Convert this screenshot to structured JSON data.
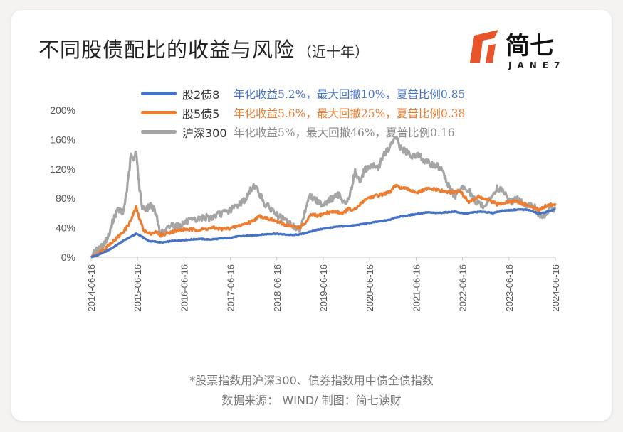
{
  "title": "不同股债配比的收益与风险",
  "subtitle": "（近十年）",
  "logo": {
    "text": "简七",
    "subtext": "JANE7"
  },
  "footnotes": [
    "*股票指数用沪深300、债券指数用中债全债指数",
    "数据来源： WIND/ 制图：简七读财"
  ],
  "legend": [
    {
      "name": "股2债8",
      "stats": "年化收益5.2%，最大回撤10%，夏普比例0.85",
      "color": "#4472c4"
    },
    {
      "name": "股5债5",
      "stats": "年化收益5.6%，最大回撤25%，夏普比例0.38",
      "color": "#ed7d31"
    },
    {
      "name": "沪深300",
      "stats": "年化收益5%，最大回撤46%，夏普比例0.16",
      "color": "#a5a5a5"
    }
  ],
  "chart_data": {
    "type": "line",
    "title": "",
    "xlabel": "",
    "ylabel": "",
    "ylim": [
      0,
      200
    ],
    "yticks": [
      "0%",
      "40%",
      "80%",
      "120%",
      "160%",
      "200%"
    ],
    "y_tick_values": [
      0,
      40,
      80,
      120,
      160,
      200
    ],
    "x_ticks": [
      "2014-06-16",
      "2015-06-16",
      "2016-06-16",
      "2017-06-16",
      "2018-06-16",
      "2019-06-16",
      "2020-06-16",
      "2021-06-16",
      "2022-06-16",
      "2023-06-16",
      "2024-06-16"
    ],
    "x_range": [
      2014.46,
      2024.46
    ],
    "grid": false,
    "legend_position": "top",
    "series": [
      {
        "name": "股2债8",
        "color": "#4472c4",
        "x": [
          2014.46,
          2014.6,
          2014.75,
          2014.9,
          2015.05,
          2015.2,
          2015.35,
          2015.43,
          2015.5,
          2015.6,
          2015.7,
          2015.85,
          2016.0,
          2016.2,
          2016.4,
          2016.6,
          2016.8,
          2017.0,
          2017.2,
          2017.4,
          2017.6,
          2017.8,
          2018.0,
          2018.2,
          2018.4,
          2018.6,
          2018.8,
          2018.95,
          2019.1,
          2019.3,
          2019.5,
          2019.7,
          2019.9,
          2020.1,
          2020.3,
          2020.5,
          2020.7,
          2020.9,
          2021.0,
          2021.1,
          2021.3,
          2021.5,
          2021.7,
          2021.9,
          2022.1,
          2022.3,
          2022.5,
          2022.7,
          2022.9,
          2023.1,
          2023.3,
          2023.5,
          2023.7,
          2023.9,
          2024.1,
          2024.3,
          2024.46
        ],
        "values": [
          0,
          3,
          7,
          12,
          18,
          24,
          29,
          32,
          30,
          26,
          22,
          21,
          20,
          22,
          23,
          24,
          25,
          24,
          25,
          26,
          28,
          29,
          30,
          31,
          32,
          31,
          30,
          31,
          33,
          37,
          39,
          41,
          42,
          43,
          45,
          47,
          49,
          51,
          54,
          55,
          57,
          59,
          61,
          60,
          61,
          62,
          59,
          61,
          62,
          60,
          63,
          64,
          65,
          64,
          59,
          62,
          65
        ]
      },
      {
        "name": "股5债5",
        "color": "#ed7d31",
        "x": [
          2014.46,
          2014.6,
          2014.75,
          2014.9,
          2015.05,
          2015.2,
          2015.3,
          2015.38,
          2015.43,
          2015.5,
          2015.6,
          2015.7,
          2015.85,
          2016.0,
          2016.1,
          2016.3,
          2016.5,
          2016.7,
          2016.9,
          2017.1,
          2017.3,
          2017.5,
          2017.7,
          2017.9,
          2018.0,
          2018.1,
          2018.2,
          2018.4,
          2018.6,
          2018.8,
          2018.95,
          2019.1,
          2019.2,
          2019.35,
          2019.5,
          2019.7,
          2019.9,
          2020.0,
          2020.1,
          2020.2,
          2020.3,
          2020.4,
          2020.5,
          2020.7,
          2020.9,
          2021.0,
          2021.1,
          2021.3,
          2021.5,
          2021.7,
          2021.9,
          2022.0,
          2022.2,
          2022.4,
          2022.6,
          2022.8,
          2023.0,
          2023.2,
          2023.4,
          2023.6,
          2023.8,
          2024.0,
          2024.1,
          2024.25,
          2024.4,
          2024.46
        ],
        "values": [
          0,
          5,
          12,
          20,
          28,
          38,
          48,
          60,
          68,
          52,
          36,
          32,
          34,
          30,
          33,
          36,
          38,
          37,
          38,
          40,
          38,
          40,
          44,
          48,
          52,
          56,
          54,
          50,
          45,
          42,
          40,
          48,
          58,
          56,
          60,
          62,
          60,
          66,
          63,
          68,
          75,
          80,
          82,
          85,
          88,
          97,
          95,
          92,
          88,
          93,
          92,
          90,
          88,
          90,
          75,
          82,
          78,
          72,
          75,
          76,
          72,
          67,
          64,
          70,
          71,
          72
        ]
      },
      {
        "name": "沪深300",
        "color": "#a5a5a5",
        "x": [
          2014.46,
          2014.55,
          2014.7,
          2014.85,
          2014.95,
          2015.05,
          2015.15,
          2015.25,
          2015.32,
          2015.38,
          2015.43,
          2015.48,
          2015.55,
          2015.65,
          2015.75,
          2015.85,
          2015.95,
          2016.05,
          2016.2,
          2016.35,
          2016.5,
          2016.7,
          2016.9,
          2017.0,
          2017.2,
          2017.4,
          2017.6,
          2017.8,
          2017.9,
          2017.98,
          2018.1,
          2018.2,
          2018.35,
          2018.5,
          2018.7,
          2018.85,
          2018.95,
          2019.05,
          2019.15,
          2019.25,
          2019.35,
          2019.45,
          2019.6,
          2019.8,
          2019.95,
          2020.05,
          2020.15,
          2020.25,
          2020.35,
          2020.45,
          2020.55,
          2020.65,
          2020.75,
          2020.85,
          2020.95,
          2021.05,
          2021.1,
          2021.2,
          2021.35,
          2021.5,
          2021.65,
          2021.85,
          2022.0,
          2022.15,
          2022.3,
          2022.45,
          2022.6,
          2022.75,
          2022.9,
          2023.05,
          2023.2,
          2023.35,
          2023.5,
          2023.65,
          2023.8,
          2023.95,
          2024.05,
          2024.15,
          2024.25,
          2024.35,
          2024.46
        ],
        "values": [
          0,
          8,
          15,
          30,
          55,
          65,
          60,
          100,
          140,
          130,
          148,
          105,
          70,
          65,
          72,
          60,
          32,
          35,
          45,
          42,
          48,
          50,
          55,
          53,
          58,
          62,
          70,
          80,
          92,
          98,
          85,
          72,
          65,
          55,
          48,
          40,
          38,
          58,
          84,
          80,
          75,
          72,
          78,
          85,
          72,
          88,
          118,
          100,
          120,
          122,
          124,
          120,
          140,
          145,
          155,
          165,
          150,
          145,
          138,
          140,
          130,
          125,
          122,
          98,
          82,
          95,
          90,
          75,
          70,
          78,
          95,
          88,
          75,
          80,
          70,
          72,
          65,
          52,
          58,
          70,
          64
        ]
      }
    ]
  }
}
